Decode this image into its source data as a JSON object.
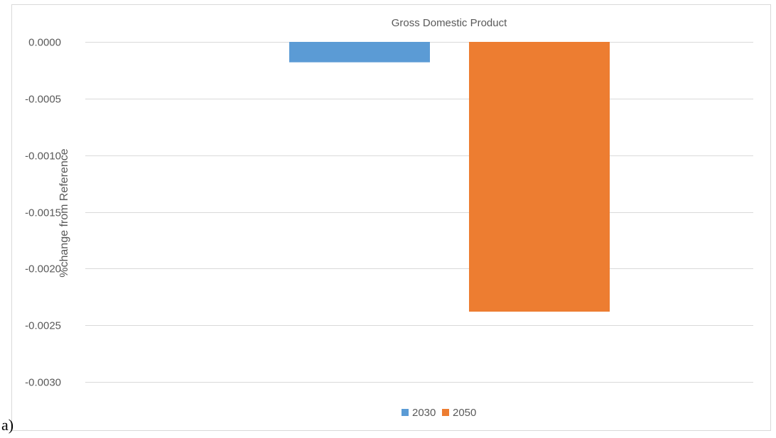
{
  "panel_label": "a)",
  "chart_data": {
    "type": "bar",
    "title": "Gross Domestic Product",
    "ylabel": "%change from Reference",
    "xlabel": "",
    "ylim": [
      -0.003,
      0.0
    ],
    "yticks": [
      0.0,
      -0.0005,
      -0.001,
      -0.0015,
      -0.002,
      -0.0025,
      -0.003
    ],
    "ytick_labels": [
      "0.0000",
      "-0.0005",
      "-0.0010",
      "-0.0015",
      "-0.0020",
      "-0.0025",
      "-0.0030"
    ],
    "grid": true,
    "legend_position": "bottom",
    "series": [
      {
        "name": "2030",
        "value": -0.00018,
        "color": "#5b9bd5"
      },
      {
        "name": "2050",
        "value": -0.00238,
        "color": "#ed7d31"
      }
    ]
  }
}
